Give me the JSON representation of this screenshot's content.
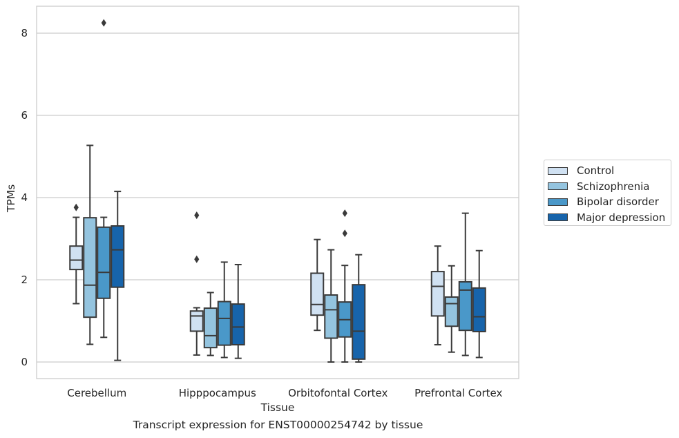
{
  "chart_data": {
    "type": "box",
    "xlabel": "Tissue",
    "ylabel": "TPMs",
    "caption": "Transcript expression for ENST00000254742 by tissue",
    "ylim": [
      -0.4,
      8.65
    ],
    "yticks": [
      "0",
      "2",
      "4",
      "6",
      "8"
    ],
    "categories": [
      "Cerebellum",
      "Hipppocampus",
      "Orbitofontal Cortex",
      "Prefrontal Cortex"
    ],
    "series": [
      {
        "name": "Control",
        "color": "#d0e1f2",
        "boxes": [
          {
            "whislo": 1.42,
            "q1": 2.25,
            "med": 2.48,
            "q3": 2.82,
            "whishi": 3.52,
            "fliers": [
              3.76
            ]
          },
          {
            "whislo": 0.17,
            "q1": 0.75,
            "med": 1.12,
            "q3": 1.24,
            "whishi": 1.32,
            "fliers": [
              2.5,
              3.57
            ]
          },
          {
            "whislo": 0.77,
            "q1": 1.14,
            "med": 1.4,
            "q3": 2.16,
            "whishi": 2.98,
            "fliers": []
          },
          {
            "whislo": 0.42,
            "q1": 1.12,
            "med": 1.84,
            "q3": 2.2,
            "whishi": 2.82,
            "fliers": []
          }
        ]
      },
      {
        "name": "Schizophrenia",
        "color": "#94c4df",
        "boxes": [
          {
            "whislo": 0.43,
            "q1": 1.09,
            "med": 1.87,
            "q3": 3.51,
            "whishi": 5.27,
            "fliers": []
          },
          {
            "whislo": 0.16,
            "q1": 0.35,
            "med": 0.64,
            "q3": 1.31,
            "whishi": 1.69,
            "fliers": []
          },
          {
            "whislo": 0.0,
            "q1": 0.58,
            "med": 1.27,
            "q3": 1.63,
            "whishi": 2.73,
            "fliers": []
          },
          {
            "whislo": 0.24,
            "q1": 0.87,
            "med": 1.42,
            "q3": 1.58,
            "whishi": 2.34,
            "fliers": []
          }
        ]
      },
      {
        "name": "Bipolar disorder",
        "color": "#4a98c9",
        "boxes": [
          {
            "whislo": 0.6,
            "q1": 1.55,
            "med": 2.18,
            "q3": 3.28,
            "whishi": 3.52,
            "fliers": [
              8.25
            ]
          },
          {
            "whislo": 0.11,
            "q1": 0.41,
            "med": 1.06,
            "q3": 1.47,
            "whishi": 2.43,
            "fliers": []
          },
          {
            "whislo": 0.0,
            "q1": 0.61,
            "med": 1.03,
            "q3": 1.46,
            "whishi": 2.35,
            "fliers": [
              3.13,
              3.62
            ]
          },
          {
            "whislo": 0.16,
            "q1": 0.77,
            "med": 1.75,
            "q3": 1.95,
            "whishi": 3.62,
            "fliers": []
          }
        ]
      },
      {
        "name": "Major depression",
        "color": "#1764ab",
        "boxes": [
          {
            "whislo": 0.04,
            "q1": 1.82,
            "med": 2.73,
            "q3": 3.31,
            "whishi": 4.15,
            "fliers": []
          },
          {
            "whislo": 0.09,
            "q1": 0.42,
            "med": 0.85,
            "q3": 1.41,
            "whishi": 2.37,
            "fliers": []
          },
          {
            "whislo": 0.0,
            "q1": 0.07,
            "med": 0.75,
            "q3": 1.88,
            "whishi": 2.61,
            "fliers": []
          },
          {
            "whislo": 0.11,
            "q1": 0.74,
            "med": 1.1,
            "q3": 1.8,
            "whishi": 2.71,
            "fliers": []
          }
        ]
      }
    ],
    "grid": "horizontal",
    "legend": "outside-right"
  }
}
